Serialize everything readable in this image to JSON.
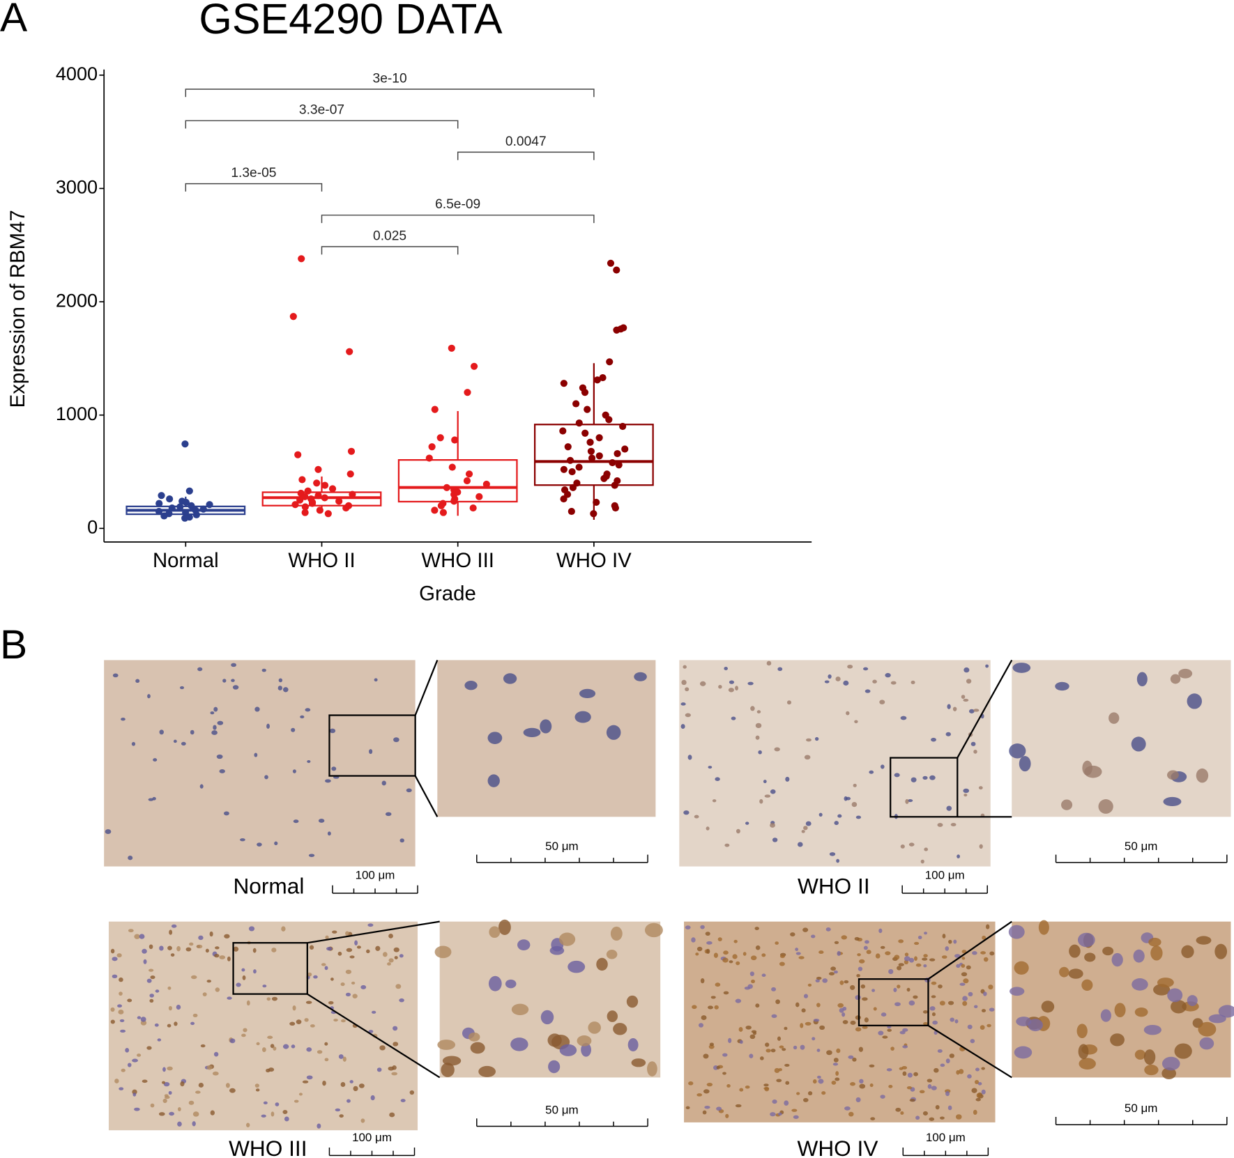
{
  "panel_labels": [
    "A",
    "B"
  ],
  "chart_data": {
    "type": "box",
    "title": "GSE4290 DATA",
    "x_label": "Grade",
    "y_label": "Expression of RBM47",
    "categories": [
      "Normal",
      "WHO II",
      "WHO III",
      "WHO IV"
    ],
    "ylim": [
      -120,
      4050
    ],
    "yticks": [
      0,
      1000,
      2000,
      3000,
      4000
    ],
    "boxes": [
      {
        "color": "#2b3f8e",
        "whisker_low": 90,
        "q1": 125,
        "median": 160,
        "q3": 194,
        "whisker_high": 280,
        "points": [
          745,
          330,
          290,
          260,
          240,
          230,
          220,
          210,
          200,
          190,
          180,
          170,
          160,
          150,
          140,
          130,
          120,
          110,
          100,
          90
        ]
      },
      {
        "color": "#e41a1c",
        "whisker_low": 146,
        "q1": 201,
        "median": 271,
        "q3": 319,
        "whisker_high": 458,
        "points": [
          2380,
          1870,
          1560,
          680,
          650,
          520,
          480,
          430,
          400,
          380,
          350,
          330,
          310,
          300,
          290,
          280,
          270,
          260,
          250,
          240,
          230,
          220,
          210,
          200,
          190,
          180,
          160,
          140,
          130
        ]
      },
      {
        "color": "#e41a1c",
        "whisker_low": 111,
        "q1": 236,
        "median": 361,
        "q3": 604,
        "whisker_high": 1035,
        "points": [
          1590,
          1430,
          1200,
          1050,
          800,
          780,
          720,
          620,
          540,
          480,
          420,
          390,
          360,
          340,
          320,
          300,
          280,
          260,
          240,
          220,
          200,
          180,
          160,
          140
        ]
      },
      {
        "color": "#8b0000",
        "whisker_low": 76,
        "q1": 382,
        "median": 590,
        "q3": 917,
        "whisker_high": 1458,
        "points": [
          2340,
          2280,
          1770,
          1760,
          1750,
          1470,
          1330,
          1310,
          1280,
          1240,
          1200,
          1100,
          1050,
          1000,
          960,
          930,
          900,
          860,
          840,
          800,
          760,
          720,
          700,
          680,
          660,
          640,
          620,
          600,
          580,
          560,
          540,
          520,
          500,
          480,
          460,
          440,
          420,
          400,
          380,
          360,
          340,
          300,
          260,
          230,
          200,
          180,
          150,
          130
        ]
      }
    ],
    "comparisons": [
      {
        "groups": [
          "Normal",
          "WHO IV"
        ],
        "label": "3e-10"
      },
      {
        "groups": [
          "Normal",
          "WHO III"
        ],
        "label": "3.3e-07"
      },
      {
        "groups": [
          "WHO III",
          "WHO IV"
        ],
        "label": "0.0047"
      },
      {
        "groups": [
          "Normal",
          "WHO II"
        ],
        "label": "1.3e-05"
      },
      {
        "groups": [
          "WHO II",
          "WHO IV"
        ],
        "label": "6.5e-09"
      },
      {
        "groups": [
          "WHO II",
          "WHO III"
        ],
        "label": "0.025"
      }
    ]
  },
  "panel_b": {
    "images": [
      {
        "label": "Normal",
        "scale_main": "100 μm",
        "scale_zoom": "50 μm"
      },
      {
        "label": "WHO II",
        "scale_main": "100 μm",
        "scale_zoom": "50 μm"
      },
      {
        "label": "WHO III",
        "scale_main": "100 μm",
        "scale_zoom": "50 μm"
      },
      {
        "label": "WHO IV",
        "scale_main": "100 μm",
        "scale_zoom": "50 μm"
      }
    ]
  }
}
